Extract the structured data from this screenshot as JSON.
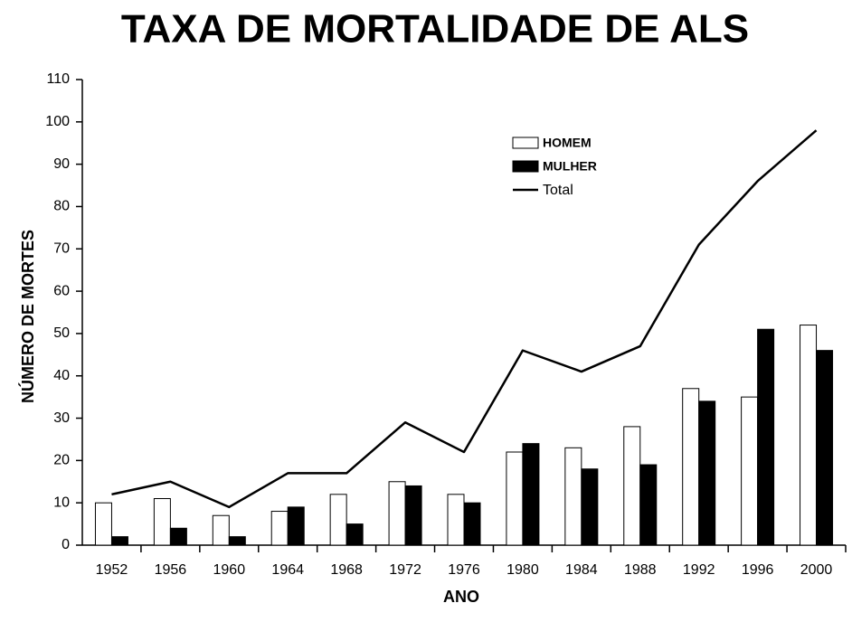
{
  "chart_data": {
    "type": "bar",
    "title": "TAXA DE MORTALIDADE DE ALS",
    "x_label": "ANO",
    "y_label": "NÚMERO DE MORTES",
    "categories": [
      "1952",
      "1956",
      "1960",
      "1964",
      "1968",
      "1972",
      "1976",
      "1980",
      "1984",
      "1988",
      "1992",
      "1996",
      "2000"
    ],
    "series": [
      {
        "name": "HOMEM",
        "color": "#ffffff",
        "values": [
          10,
          11,
          7,
          8,
          12,
          15,
          12,
          22,
          23,
          28,
          37,
          35,
          52
        ]
      },
      {
        "name": "MULHER",
        "color": "#000000",
        "values": [
          2,
          4,
          2,
          9,
          5,
          14,
          10,
          24,
          18,
          19,
          34,
          51,
          46
        ]
      },
      {
        "name": "Total",
        "type": "line",
        "color": "#000000",
        "values": [
          12,
          15,
          9,
          17,
          17,
          29,
          22,
          46,
          41,
          47,
          71,
          86,
          98
        ]
      }
    ],
    "ylim": [
      0,
      110
    ],
    "yticks": [
      0,
      10,
      20,
      30,
      40,
      50,
      60,
      70,
      80,
      90,
      100,
      110
    ],
    "legend": "upper center"
  }
}
